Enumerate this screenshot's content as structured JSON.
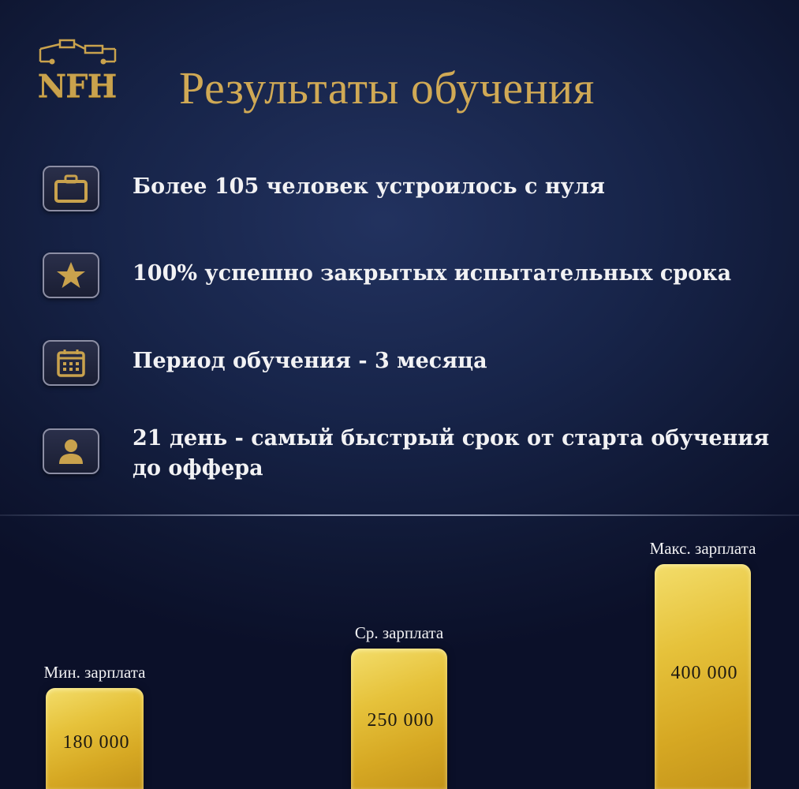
{
  "logo": {
    "text": "NFH"
  },
  "header": {
    "title": "Результаты обучения"
  },
  "features": [
    {
      "icon": "briefcase-icon",
      "text": "Более 105 человек устроилось с нуля"
    },
    {
      "icon": "star-icon",
      "text": "100% успешно закрытых испытательных срока"
    },
    {
      "icon": "calendar-icon",
      "text": "Период обучения - 3 месяца"
    },
    {
      "icon": "user-icon",
      "text": "21 день - самый быстрый срок от старта обучения до оффера"
    }
  ],
  "chart_data": {
    "type": "bar",
    "categories": [
      "Мин. зарплата",
      "Ср. зарплата",
      "Макс. зарплата"
    ],
    "values": [
      180000,
      250000,
      400000
    ],
    "value_labels": [
      "180 000",
      "250 000",
      "400 000"
    ]
  },
  "colors": {
    "gold": "#d0a955",
    "background": "#172449",
    "bar": "#e6c23b"
  }
}
